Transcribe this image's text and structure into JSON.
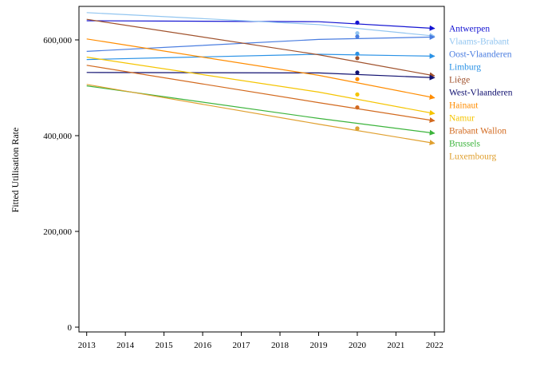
{
  "chart_data": {
    "type": "line",
    "ylabel": "Fitted Utilisation Rate",
    "xlabel": "",
    "x_ticks": [
      2013,
      2014,
      2015,
      2016,
      2017,
      2018,
      2019,
      2020,
      2021,
      2022
    ],
    "x_tick_labels": [
      "2013",
      "2014",
      "2015",
      "2016",
      "2017",
      "2018",
      "2019",
      "2020",
      "2021",
      "2022"
    ],
    "xlim": [
      2012.8,
      2022.25
    ],
    "y_ticks": [
      0,
      200000,
      400000,
      600000
    ],
    "y_tick_labels": [
      "0",
      "200,000",
      "400,000",
      "600,000"
    ],
    "ylim": [
      -10000,
      670000
    ],
    "grid": false,
    "legend_placement": "right, at line ends",
    "marker_x": 2020,
    "series": [
      {
        "name": "Antwerpen",
        "color": "#1414d2",
        "x": [
          2013,
          2019,
          2022
        ],
        "y": [
          640000,
          638000,
          624000
        ],
        "marker_y": 636000
      },
      {
        "name": "Vlaams-Brabant",
        "color": "#92c5f0",
        "x": [
          2013,
          2019,
          2022
        ],
        "y": [
          657000,
          632000,
          608000
        ],
        "marker_y": 614000
      },
      {
        "name": "Oost-Vlaanderen",
        "color": "#4a7de0",
        "x": [
          2013,
          2019,
          2022
        ],
        "y": [
          576000,
          601000,
          606000
        ],
        "marker_y": 607000
      },
      {
        "name": "Limburg",
        "color": "#2a92e6",
        "x": [
          2013,
          2019,
          2022
        ],
        "y": [
          559000,
          570000,
          566000
        ],
        "marker_y": 571000
      },
      {
        "name": "Liège",
        "color": "#a0522d",
        "x": [
          2013,
          2019,
          2022
        ],
        "y": [
          643000,
          569000,
          525000
        ],
        "marker_y": 562000
      },
      {
        "name": "West-Vlaanderen",
        "color": "#101070",
        "x": [
          2013,
          2019,
          2022
        ],
        "y": [
          532000,
          531000,
          521000
        ],
        "marker_y": 532000
      },
      {
        "name": "Hainaut",
        "color": "#ff8c00",
        "x": [
          2013,
          2019,
          2022
        ],
        "y": [
          602000,
          526000,
          479000
        ],
        "marker_y": 518000
      },
      {
        "name": "Namur",
        "color": "#f5c400",
        "x": [
          2013,
          2019,
          2022
        ],
        "y": [
          564000,
          491000,
          446000
        ],
        "marker_y": 486000
      },
      {
        "name": "Brabant Wallon",
        "color": "#d2691e",
        "x": [
          2013,
          2019,
          2022
        ],
        "y": [
          547000,
          469000,
          431000
        ],
        "marker_y": 459000
      },
      {
        "name": "Brussels",
        "color": "#3cb43c",
        "x": [
          2013,
          2019,
          2022
        ],
        "y": [
          504000,
          436000,
          405000
        ],
        "marker_y": 415000
      },
      {
        "name": "Luxembourg",
        "color": "#e0a030",
        "x": [
          2013,
          2019,
          2022
        ],
        "y": [
          507000,
          424000,
          384000
        ],
        "marker_y": 415000
      }
    ]
  }
}
